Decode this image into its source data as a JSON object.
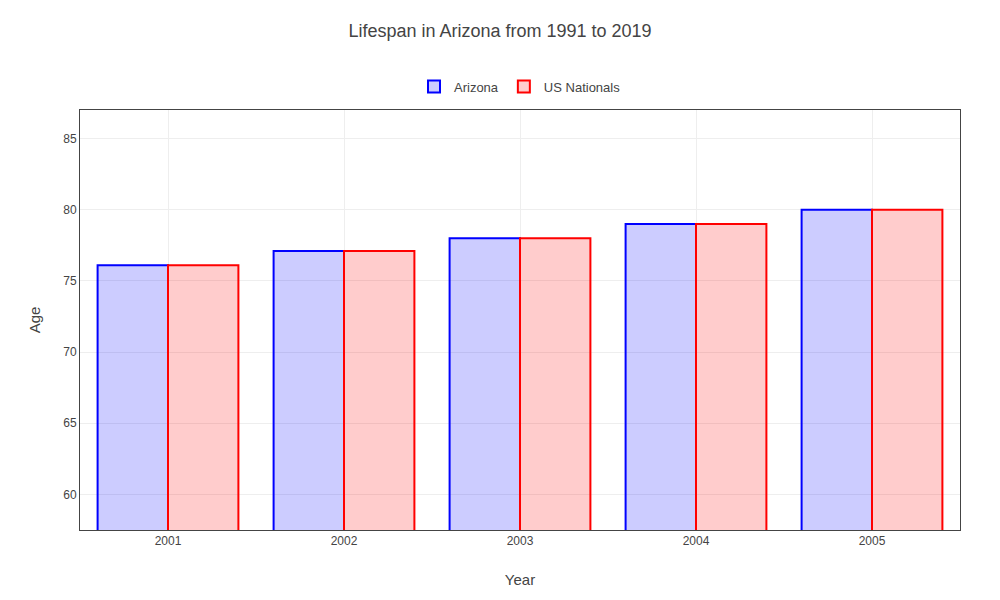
{
  "chart_data": {
    "type": "bar",
    "title": "Lifespan in Arizona from 1991 to 2019",
    "xlabel": "Year",
    "ylabel": "Age",
    "categories": [
      "2001",
      "2002",
      "2003",
      "2004",
      "2005"
    ],
    "series": [
      {
        "name": "Arizona",
        "color": "#0000ff",
        "values": [
          76.1,
          77.1,
          78.0,
          79.0,
          80.0
        ]
      },
      {
        "name": "US Nationals",
        "color": "#ff0000",
        "values": [
          76.1,
          77.1,
          78.0,
          79.0,
          80.0
        ]
      }
    ],
    "ylim": [
      57.5,
      87
    ],
    "yticks": [
      60,
      65,
      70,
      75,
      80,
      85
    ],
    "grid": true,
    "legend": "top"
  }
}
